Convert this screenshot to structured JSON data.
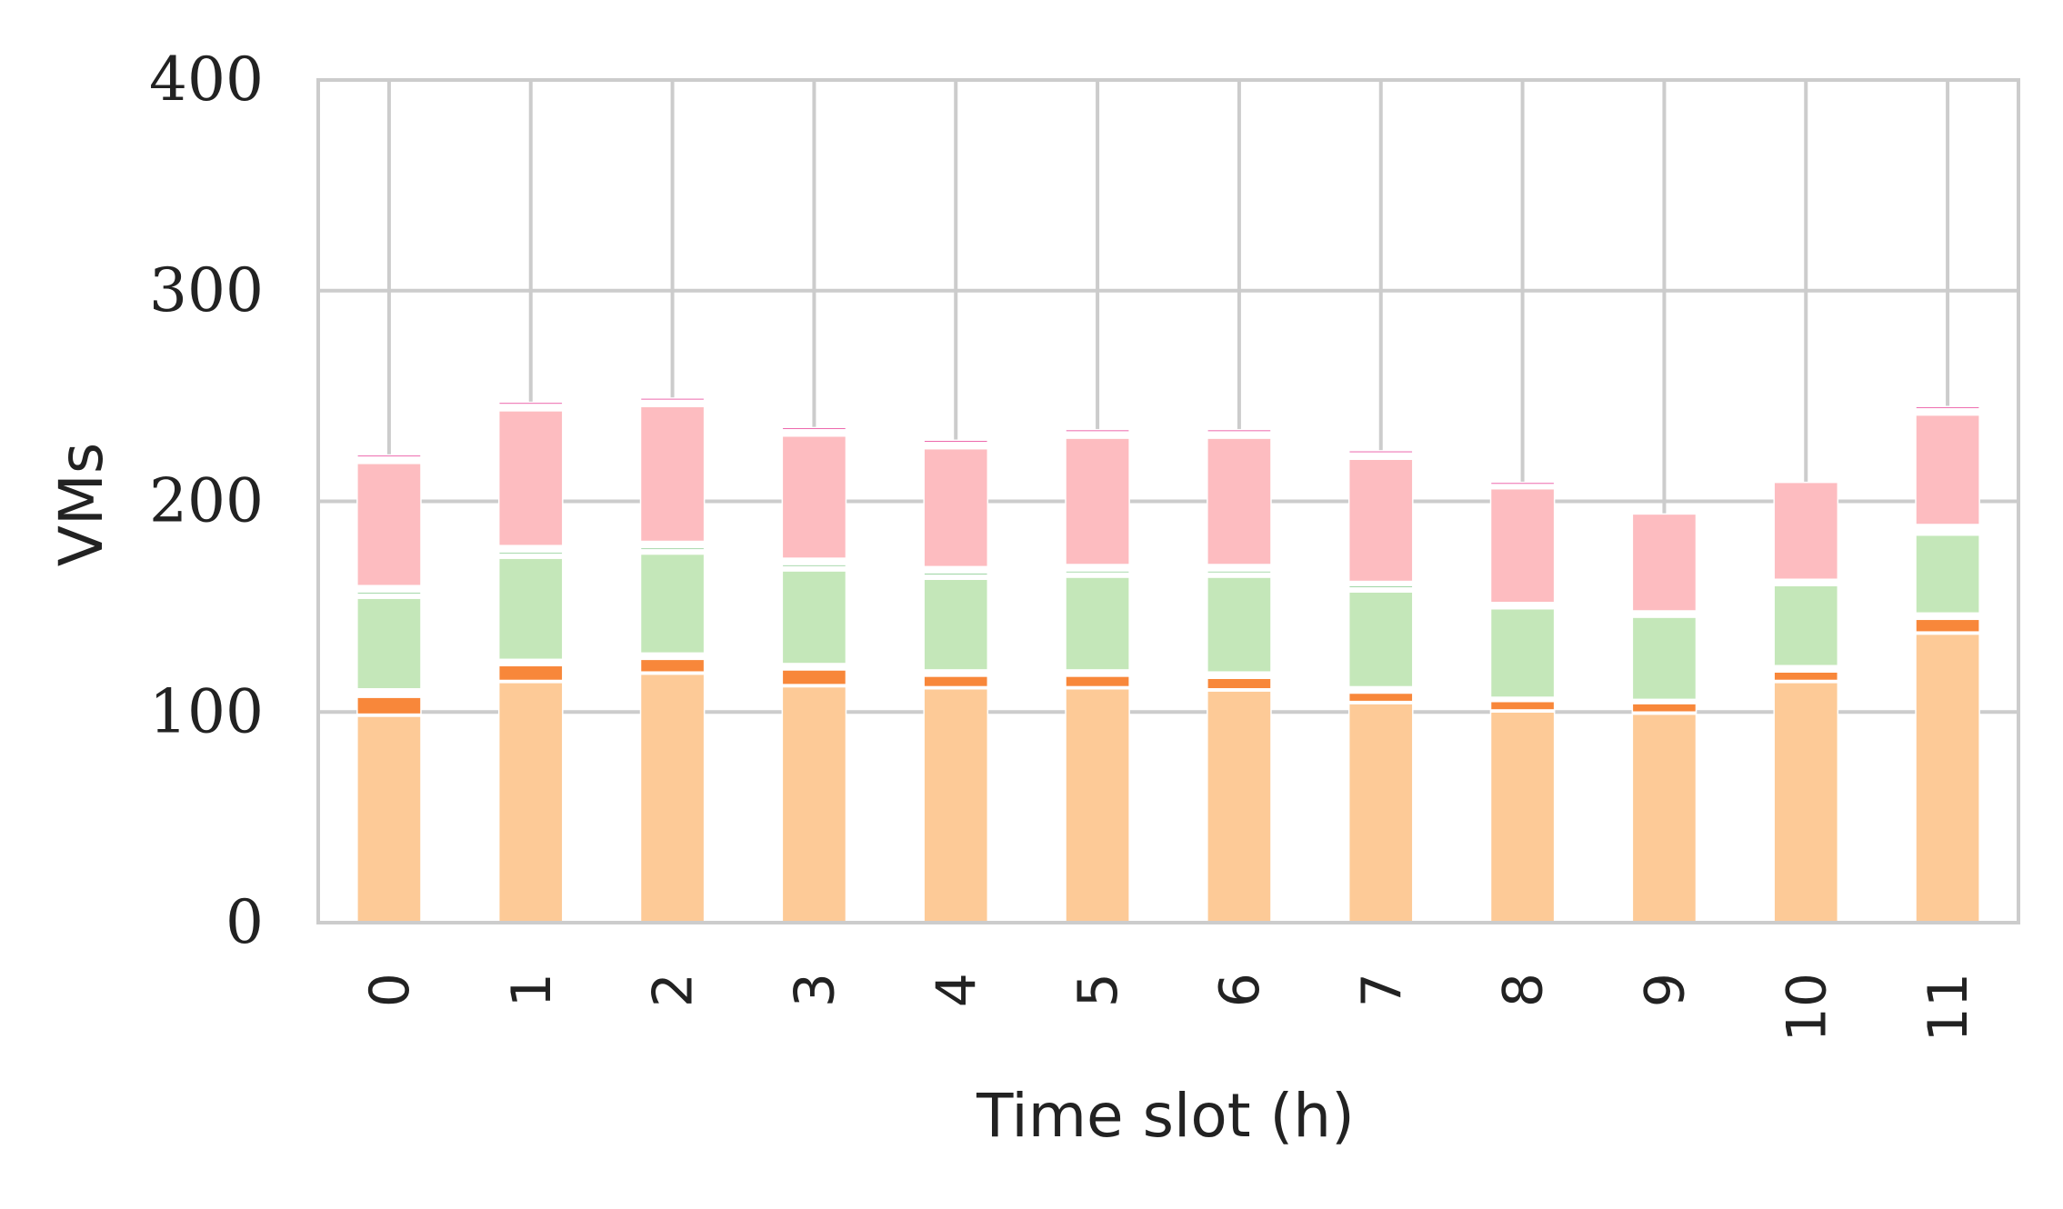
{
  "chart_data": {
    "type": "bar",
    "stacked": true,
    "title": "",
    "xlabel": "Time slot (h)",
    "ylabel": "VMs",
    "ylim": [
      0,
      400
    ],
    "yticks": [
      "0",
      "100",
      "200",
      "300",
      "400"
    ],
    "categories": [
      "0",
      "1",
      "2",
      "3",
      "4",
      "5",
      "6",
      "7",
      "8",
      "9",
      "10",
      "11"
    ],
    "grid": true,
    "legend": "none",
    "series": [
      {
        "color": "#fdca97",
        "values": [
          98,
          114,
          118,
          112,
          111,
          111,
          110,
          104,
          100,
          99,
          114,
          137
        ]
      },
      {
        "color": "#ffffff",
        "values": [
          1,
          1,
          1,
          1,
          1,
          1,
          1,
          1,
          1,
          1,
          1,
          1
        ]
      },
      {
        "color": "#f8873a",
        "values": [
          8,
          7,
          6,
          7,
          5,
          5,
          5,
          4,
          4,
          4,
          4,
          6
        ]
      },
      {
        "color": "#ffffff",
        "values": [
          4,
          3,
          3,
          3,
          3,
          3,
          3,
          3,
          2,
          2,
          3,
          3
        ]
      },
      {
        "color": "#c4e7b9",
        "values": [
          43,
          48,
          47,
          44,
          43,
          44,
          45,
          45,
          42,
          39,
          38,
          37
        ]
      },
      {
        "color": "#ffffff",
        "values": [
          2,
          2,
          2,
          2,
          2,
          2,
          2,
          2,
          1,
          1,
          1,
          2
        ]
      },
      {
        "color": "#83c98b",
        "values": [
          1,
          1,
          1,
          1,
          1,
          1,
          1,
          1,
          0,
          0,
          0,
          0
        ]
      },
      {
        "color": "#ffffff",
        "values": [
          3,
          3,
          3,
          3,
          3,
          3,
          3,
          2,
          2,
          2,
          2,
          3
        ]
      },
      {
        "color": "#fdbcc0",
        "values": [
          58,
          64,
          64,
          58,
          56,
          60,
          60,
          58,
          54,
          46,
          46,
          52
        ]
      },
      {
        "color": "#ffffff",
        "values": [
          3,
          3,
          3,
          3,
          3,
          3,
          3,
          3,
          2,
          0,
          0,
          3
        ]
      },
      {
        "color": "#e9489b",
        "values": [
          1,
          1,
          1,
          1,
          1,
          1,
          1,
          1,
          1,
          0,
          0,
          1
        ]
      }
    ]
  }
}
